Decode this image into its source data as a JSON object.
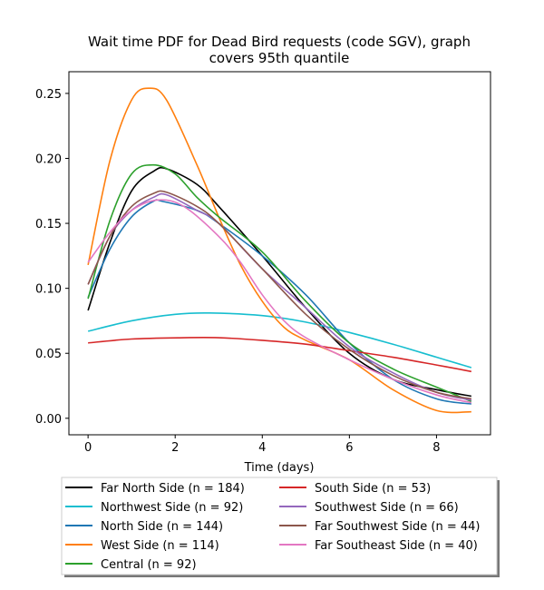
{
  "chart_data": {
    "type": "line",
    "title_line1": "Wait time PDF for Dead Bird  requests (code SGV), graph",
    "title_line2": "covers 95th quantile",
    "xlabel": "Time (days)",
    "ylabel": "",
    "xlim": [
      -0.44,
      9.24
    ],
    "ylim": [
      -0.0127,
      0.2667
    ],
    "x_ticks": [
      0,
      2,
      4,
      6,
      8
    ],
    "y_ticks": [
      0.0,
      0.05,
      0.1,
      0.15,
      0.2,
      0.25
    ],
    "x_tick_labels": [
      "0",
      "2",
      "4",
      "6",
      "8"
    ],
    "y_tick_labels": [
      "0.00",
      "0.05",
      "0.10",
      "0.15",
      "0.20",
      "0.25"
    ],
    "grid": false,
    "legend_placement": "below",
    "series": [
      {
        "name": "Far North Side (n = 184)",
        "color": "#000000",
        "points": [
          [
            0,
            0.083
          ],
          [
            0.5,
            0.135
          ],
          [
            1,
            0.175
          ],
          [
            1.5,
            0.19
          ],
          [
            1.8,
            0.192
          ],
          [
            2.5,
            0.18
          ],
          [
            3,
            0.163
          ],
          [
            4,
            0.125
          ],
          [
            5,
            0.085
          ],
          [
            6,
            0.05
          ],
          [
            7,
            0.03
          ],
          [
            8,
            0.022
          ],
          [
            8.8,
            0.017
          ]
        ]
      },
      {
        "name": "Northwest Side (n = 92)",
        "color": "#17becf",
        "points": [
          [
            0,
            0.067
          ],
          [
            1,
            0.075
          ],
          [
            2,
            0.08
          ],
          [
            2.8,
            0.081
          ],
          [
            4,
            0.079
          ],
          [
            5,
            0.074
          ],
          [
            6,
            0.066
          ],
          [
            7,
            0.057
          ],
          [
            8,
            0.047
          ],
          [
            8.8,
            0.039
          ]
        ]
      },
      {
        "name": "North Side (n = 144)",
        "color": "#1f77b4",
        "points": [
          [
            0,
            0.093
          ],
          [
            0.5,
            0.13
          ],
          [
            1,
            0.155
          ],
          [
            1.5,
            0.167
          ],
          [
            1.7,
            0.167
          ],
          [
            2.5,
            0.16
          ],
          [
            3,
            0.15
          ],
          [
            4,
            0.125
          ],
          [
            5,
            0.095
          ],
          [
            6,
            0.058
          ],
          [
            7,
            0.03
          ],
          [
            8,
            0.015
          ],
          [
            8.8,
            0.011
          ]
        ]
      },
      {
        "name": "West Side (n = 114)",
        "color": "#ff7f0e",
        "points": [
          [
            0,
            0.118
          ],
          [
            0.5,
            0.198
          ],
          [
            1,
            0.245
          ],
          [
            1.4,
            0.254
          ],
          [
            1.8,
            0.245
          ],
          [
            2.5,
            0.195
          ],
          [
            3,
            0.155
          ],
          [
            3.5,
            0.118
          ],
          [
            4,
            0.09
          ],
          [
            4.5,
            0.07
          ],
          [
            5,
            0.06
          ],
          [
            6,
            0.045
          ],
          [
            7,
            0.022
          ],
          [
            8,
            0.006
          ],
          [
            8.8,
            0.005
          ]
        ]
      },
      {
        "name": "Central (n = 92)",
        "color": "#2ca02c",
        "points": [
          [
            0,
            0.092
          ],
          [
            0.5,
            0.152
          ],
          [
            1,
            0.188
          ],
          [
            1.5,
            0.195
          ],
          [
            2,
            0.188
          ],
          [
            2.5,
            0.17
          ],
          [
            3,
            0.155
          ],
          [
            4,
            0.128
          ],
          [
            5,
            0.09
          ],
          [
            6,
            0.058
          ],
          [
            7,
            0.038
          ],
          [
            8,
            0.024
          ],
          [
            8.8,
            0.013
          ]
        ]
      },
      {
        "name": "South Side (n = 53)",
        "color": "#d62728",
        "points": [
          [
            0,
            0.058
          ],
          [
            1,
            0.061
          ],
          [
            2.2,
            0.062
          ],
          [
            3,
            0.062
          ],
          [
            4,
            0.06
          ],
          [
            5,
            0.057
          ],
          [
            6,
            0.052
          ],
          [
            7,
            0.047
          ],
          [
            8,
            0.041
          ],
          [
            8.8,
            0.036
          ]
        ]
      },
      {
        "name": "Southwest Side (n = 66)",
        "color": "#9467bd",
        "points": [
          [
            0,
            0.103
          ],
          [
            0.5,
            0.14
          ],
          [
            1,
            0.16
          ],
          [
            1.5,
            0.17
          ],
          [
            1.8,
            0.172
          ],
          [
            2.5,
            0.16
          ],
          [
            3,
            0.15
          ],
          [
            4,
            0.115
          ],
          [
            5,
            0.085
          ],
          [
            6,
            0.055
          ],
          [
            7,
            0.035
          ],
          [
            8,
            0.02
          ],
          [
            8.8,
            0.014
          ]
        ]
      },
      {
        "name": "Far Southwest Side (n = 44)",
        "color": "#8c564b",
        "points": [
          [
            0,
            0.103
          ],
          [
            0.5,
            0.14
          ],
          [
            1,
            0.163
          ],
          [
            1.5,
            0.173
          ],
          [
            1.8,
            0.174
          ],
          [
            2.5,
            0.163
          ],
          [
            3,
            0.15
          ],
          [
            4,
            0.115
          ],
          [
            5,
            0.08
          ],
          [
            6,
            0.053
          ],
          [
            7,
            0.033
          ],
          [
            8,
            0.02
          ],
          [
            8.8,
            0.015
          ]
        ]
      },
      {
        "name": "Far Southeast Side (n = 40)",
        "color": "#e377c2",
        "points": [
          [
            0,
            0.12
          ],
          [
            0.5,
            0.143
          ],
          [
            1,
            0.16
          ],
          [
            1.6,
            0.168
          ],
          [
            2.2,
            0.163
          ],
          [
            3,
            0.14
          ],
          [
            3.5,
            0.12
          ],
          [
            4,
            0.095
          ],
          [
            4.5,
            0.075
          ],
          [
            5,
            0.062
          ],
          [
            6,
            0.045
          ],
          [
            7,
            0.03
          ],
          [
            8,
            0.018
          ],
          [
            8.8,
            0.012
          ]
        ]
      }
    ]
  }
}
